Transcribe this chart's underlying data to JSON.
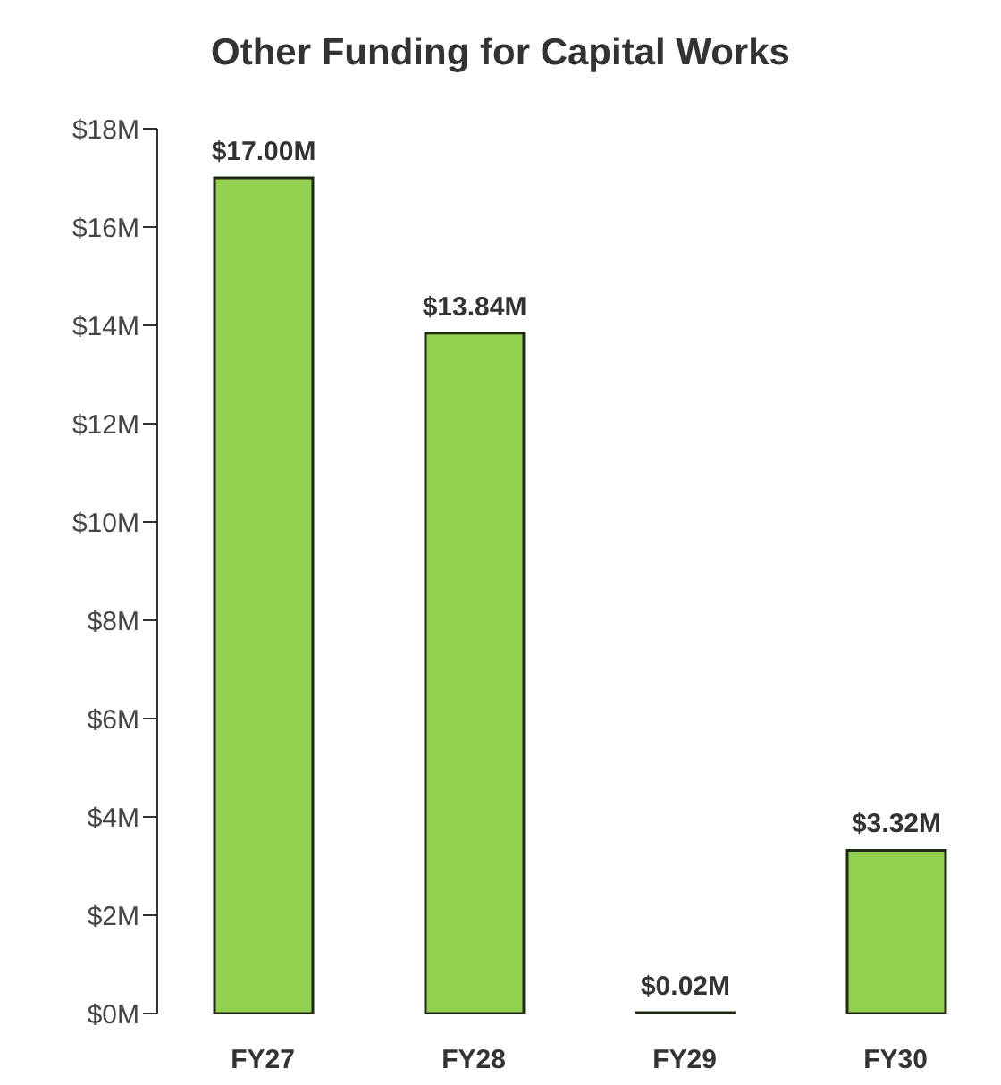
{
  "chart_data": {
    "type": "bar",
    "title": "Other Funding for Capital Works",
    "categories": [
      "FY27",
      "FY28",
      "FY29",
      "FY30"
    ],
    "values": [
      17.0,
      13.84,
      0.02,
      3.32
    ],
    "value_labels": [
      "$17.00M",
      "$13.84M",
      "$0.02M",
      "$3.32M"
    ],
    "color": "#92d050",
    "ylim": [
      0,
      18
    ],
    "yticks": [
      {
        "value": 0,
        "label": "$0M"
      },
      {
        "value": 2,
        "label": "$2M"
      },
      {
        "value": 4,
        "label": "$4M"
      },
      {
        "value": 6,
        "label": "$6M"
      },
      {
        "value": 8,
        "label": "$8M"
      },
      {
        "value": 10,
        "label": "$10M"
      },
      {
        "value": 12,
        "label": "$12M"
      },
      {
        "value": 14,
        "label": "$14M"
      },
      {
        "value": 16,
        "label": "$16M"
      },
      {
        "value": 18,
        "label": "$18M"
      }
    ],
    "grid": false,
    "legend": false
  }
}
